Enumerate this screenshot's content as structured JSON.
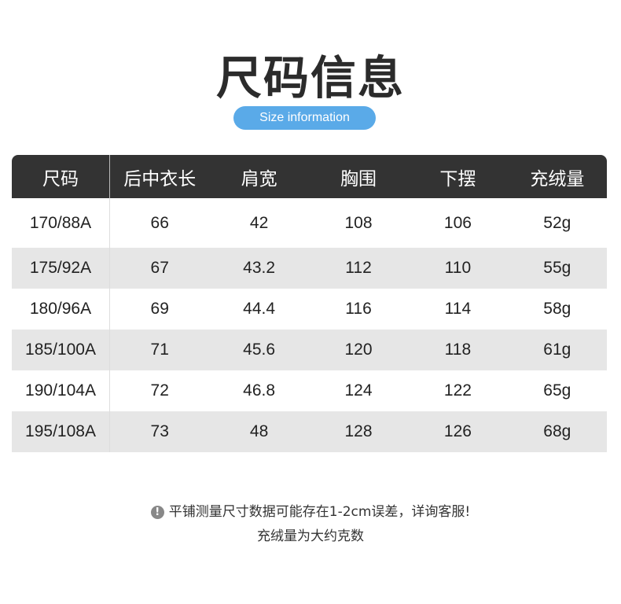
{
  "title": "尺码信息",
  "subtitle": "Size information",
  "accent_color": "#5aaae8",
  "table": {
    "headers": [
      "尺码",
      "后中衣长",
      "肩宽",
      "胸围",
      "下摆",
      "充绒量"
    ],
    "rows": [
      [
        "170/88A",
        "66",
        "42",
        "108",
        "106",
        "52g"
      ],
      [
        "175/92A",
        "67",
        "43.2",
        "112",
        "110",
        "55g"
      ],
      [
        "180/96A",
        "69",
        "44.4",
        "116",
        "114",
        "58g"
      ],
      [
        "185/100A",
        "71",
        "45.6",
        "120",
        "118",
        "61g"
      ],
      [
        "190/104A",
        "72",
        "46.8",
        "124",
        "122",
        "65g"
      ],
      [
        "195/108A",
        "73",
        "48",
        "128",
        "126",
        "68g"
      ]
    ]
  },
  "notes": {
    "icon": "exclamation-circle-icon",
    "line1": "平铺测量尺寸数据可能存在1-2cm误差，详询客服!",
    "line2": "充绒量为大约克数"
  }
}
